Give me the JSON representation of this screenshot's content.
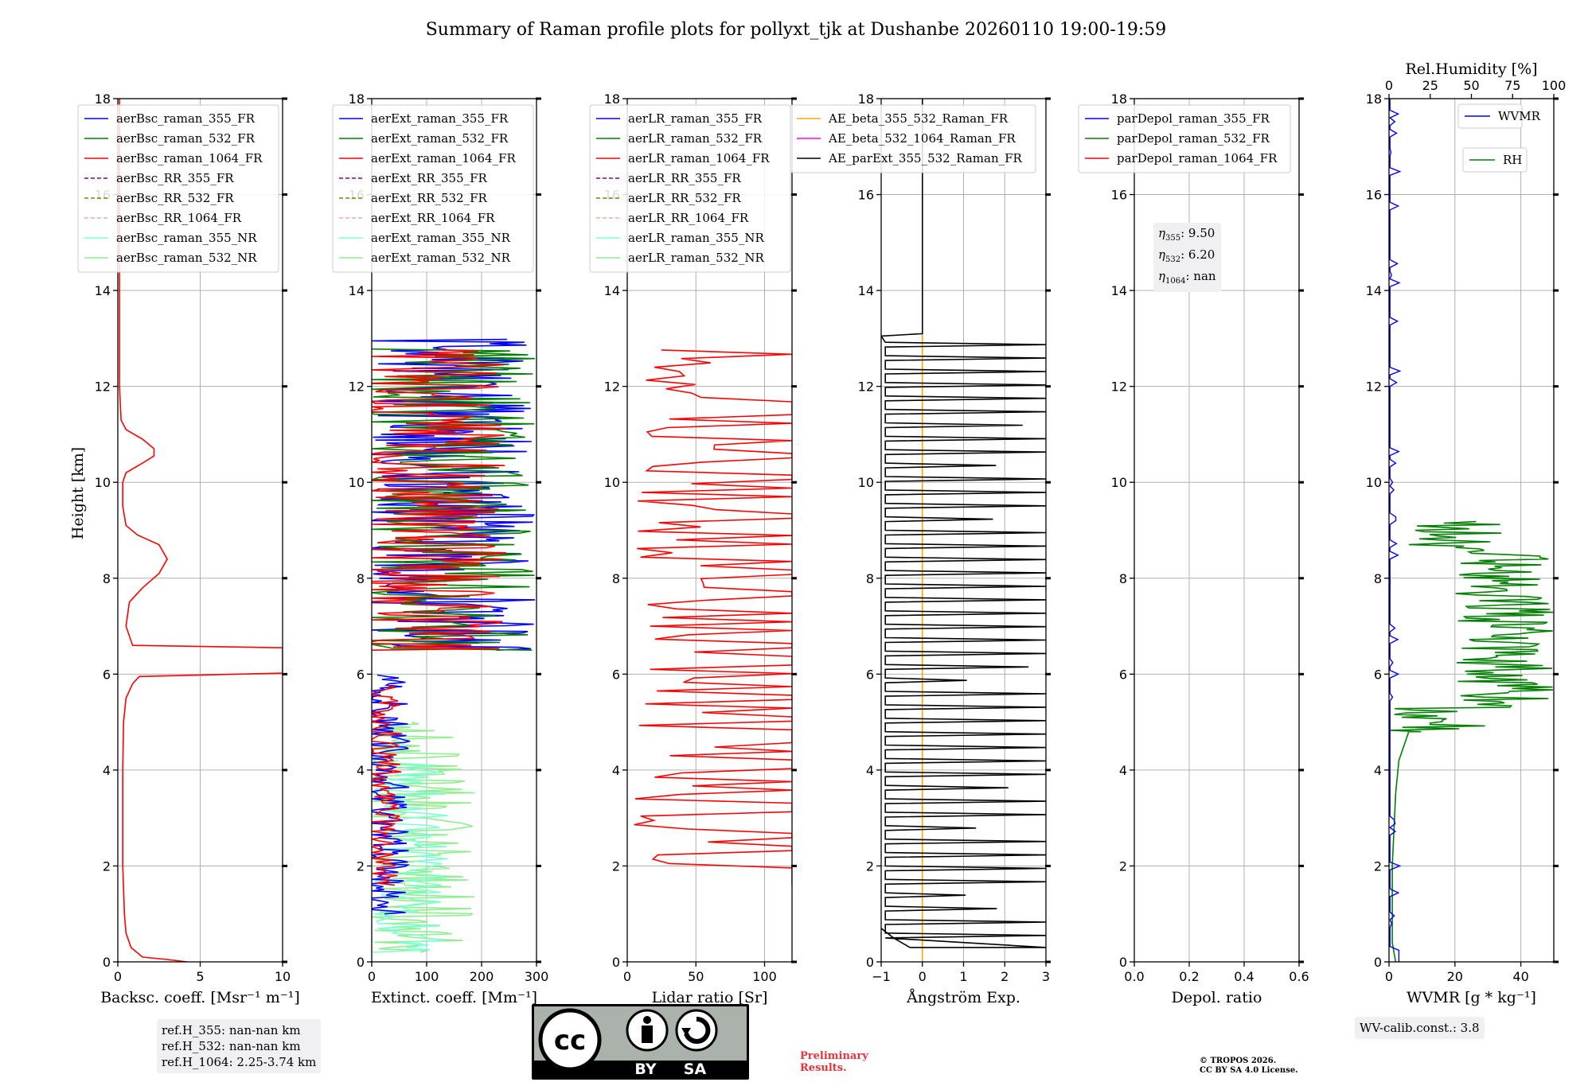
{
  "chart_data": {
    "title": "Summary of Raman profile plots for pollyxt_tjk at Dushanbe 20260110 19:00-19:59",
    "y_axis": {
      "label": "Height [km]",
      "range": [
        0,
        18
      ],
      "ticks": [
        "0",
        "2",
        "4",
        "6",
        "8",
        "10",
        "12",
        "14",
        "16",
        "18"
      ]
    },
    "panels": [
      {
        "id": "bsc",
        "type": "line",
        "xlabel": "Backsc. coeff. [Msr⁻¹ m⁻¹]",
        "xlim": [
          0,
          10
        ],
        "xticks": [
          "0",
          "5",
          "10"
        ],
        "legend": [
          "aerBsc_raman_355_FR",
          "aerBsc_raman_532_FR",
          "aerBsc_raman_1064_FR",
          "aerBsc_RR_355_FR",
          "aerBsc_RR_532_FR",
          "aerBsc_RR_1064_FR",
          "aerBsc_raman_355_NR",
          "aerBsc_raman_532_NR"
        ],
        "series": [
          {
            "name": "aerBsc_raman_1064_FR",
            "color": "#ff0000",
            "points": [
              [
                4.2,
                0
              ],
              [
                3,
                0.05
              ],
              [
                1.5,
                0.1
              ],
              [
                0.8,
                0.3
              ],
              [
                0.5,
                0.6
              ],
              [
                0.4,
                1
              ],
              [
                0.3,
                2
              ],
              [
                0.3,
                3
              ],
              [
                0.3,
                4
              ],
              [
                0.35,
                5
              ],
              [
                0.5,
                5.5
              ],
              [
                0.9,
                5.8
              ],
              [
                1.3,
                5.95
              ],
              [
                10,
                6.02
              ],
              [
                10,
                6.05
              ],
              [
                10,
                6.5
              ],
              [
                10,
                6.55
              ],
              [
                0.9,
                6.6
              ],
              [
                0.5,
                7
              ],
              [
                0.7,
                7.5
              ],
              [
                1.5,
                7.8
              ],
              [
                2.5,
                8.1
              ],
              [
                3,
                8.4
              ],
              [
                2.5,
                8.7
              ],
              [
                1.2,
                8.9
              ],
              [
                0.5,
                9.1
              ],
              [
                0.3,
                9.5
              ],
              [
                0.3,
                10
              ],
              [
                0.5,
                10.2
              ],
              [
                1.5,
                10.4
              ],
              [
                2.2,
                10.55
              ],
              [
                2.2,
                10.7
              ],
              [
                1.5,
                10.9
              ],
              [
                0.5,
                11.1
              ],
              [
                0.2,
                11.3
              ],
              [
                0.1,
                12
              ],
              [
                0.1,
                14
              ],
              [
                0.1,
                16
              ],
              [
                0.1,
                18
              ]
            ]
          }
        ]
      },
      {
        "id": "ext",
        "type": "line",
        "xlabel": "Extinct. coeff. [Mm⁻¹]",
        "xlim": [
          0,
          300
        ],
        "xticks": [
          "0",
          "100",
          "200",
          "300"
        ],
        "legend": [
          "aerExt_raman_355_FR",
          "aerExt_raman_532_FR",
          "aerExt_raman_1064_FR",
          "aerExt_RR_355_FR",
          "aerExt_RR_532_FR",
          "aerExt_RR_1064_FR",
          "aerExt_raman_355_NR",
          "aerExt_raman_532_NR"
        ]
      },
      {
        "id": "lr",
        "type": "line",
        "xlabel": "Lidar ratio [Sr]",
        "xlim": [
          0,
          120
        ],
        "xticks": [
          "0",
          "50",
          "100"
        ],
        "legend": [
          "aerLR_raman_355_FR",
          "aerLR_raman_532_FR",
          "aerLR_raman_1064_FR",
          "aerLR_RR_355_FR",
          "aerLR_RR_532_FR",
          "aerLR_RR_1064_FR",
          "aerLR_raman_355_NR",
          "aerLR_raman_532_NR"
        ]
      },
      {
        "id": "ae",
        "type": "line",
        "xlabel": "Ångström Exp.",
        "xlim": [
          -1,
          3
        ],
        "xticks": [
          "−1",
          "0",
          "1",
          "2",
          "3"
        ],
        "legend": [
          "AE_beta_355_532_Raman_FR",
          "AE_beta_532_1064_Raman_FR",
          "AE_parExt_355_532_Raman_FR"
        ]
      },
      {
        "id": "depol",
        "type": "line",
        "xlabel": "Depol. ratio",
        "xlim": [
          0,
          0.6
        ],
        "xticks": [
          "0.0",
          "0.2",
          "0.4",
          "0.6"
        ],
        "legend": [
          "parDepol_raman_355_FR",
          "parDepol_raman_532_FR",
          "parDepol_raman_1064_FR"
        ],
        "eta": {
          "eta355": "9.50",
          "eta532": "6.20",
          "eta1064": "nan"
        }
      },
      {
        "id": "wv",
        "type": "line",
        "xlabel": "WVMR [g * kg⁻¹]",
        "xlim": [
          0,
          50
        ],
        "xticks": [
          "0",
          "20",
          "40"
        ],
        "top_label": "Rel.Humidity [%]",
        "top_xlim": [
          0,
          100
        ],
        "top_ticks": [
          "0",
          "25",
          "50",
          "75",
          "100"
        ],
        "legend": [
          "WVMR",
          "RH"
        ]
      }
    ]
  },
  "colors": {
    "blue": "#0000ff",
    "green": "#008000",
    "red": "#ff0000",
    "purple": "#800080",
    "olive": "#808000",
    "salmon": "#f7a6a0",
    "cyan": "#7fffd4",
    "lightgreen": "#90ee90",
    "orange": "#ffa500",
    "magenta": "#ff00ff",
    "black": "#000000"
  },
  "annotations": {
    "ref_heights": [
      "ref.H_355: nan-nan km",
      "ref.H_532: nan-nan km",
      "ref.H_1064: 2.25-3.74 km"
    ],
    "eta_values": [
      "9.50",
      "6.20",
      "nan"
    ],
    "wv_calib": "WV-calib.const.: 3.8",
    "preliminary": [
      "Preliminary",
      "Results."
    ],
    "copyright": [
      "© TROPOS 2026.",
      "CC BY SA 4.0 License."
    ],
    "cc_badge": {
      "top": "cc",
      "by": "BY",
      "sa": "SA"
    }
  }
}
